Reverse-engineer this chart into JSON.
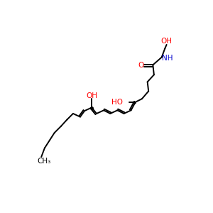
{
  "background_color": "#ffffff",
  "bond_color": "#000000",
  "oxygen_color": "#ff0000",
  "nitrogen_color": "#0000cd",
  "label_OH_top": "OH",
  "label_OH_mid": "OH",
  "label_HO": "HO",
  "label_O": "O",
  "label_NH": "NH",
  "label_CH3": "CH₃",
  "figsize": [
    3.0,
    3.0
  ],
  "dpi": 100,
  "lw": 1.4
}
